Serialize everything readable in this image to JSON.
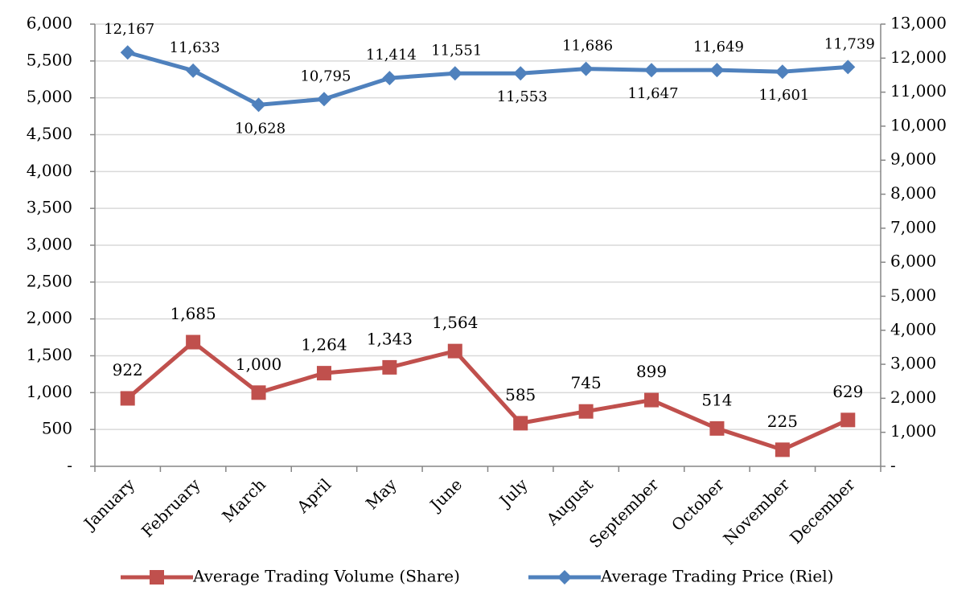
{
  "chart_data": {
    "type": "line",
    "categories": [
      "January",
      "February",
      "March",
      "April",
      "May",
      "June",
      "July",
      "August",
      "September",
      "October",
      "November",
      "December"
    ],
    "series": [
      {
        "name": "Average Trading Volume (Share)",
        "color": "#c0504d",
        "marker": "square",
        "values": [
          922,
          1685,
          1000,
          1264,
          1343,
          1564,
          585,
          745,
          899,
          514,
          225,
          629
        ],
        "value_labels": [
          "922",
          "1,685",
          "1,000",
          "1,264",
          "1,343",
          "1,564",
          "585",
          "745",
          "899",
          "514",
          "225",
          "629"
        ]
      },
      {
        "name": "Average Trading Price (Riel)",
        "color": "#4f81bd",
        "marker": "diamond",
        "axis": "y2",
        "values": [
          12167,
          11633,
          10628,
          10795,
          11414,
          11551,
          11553,
          11686,
          11647,
          11649,
          11601,
          11739
        ],
        "value_labels": [
          "12,167",
          "11,633",
          "10,628",
          "10,795",
          "11,414",
          "11,551",
          "11,553",
          "11,686",
          "11,647",
          "11,649",
          "11,601",
          "11,739"
        ]
      }
    ],
    "ylim": [
      0,
      6000
    ],
    "yticks": [
      {
        "value": 0,
        "label": "-"
      },
      500,
      {
        "value": 1000,
        "label": "1,000"
      },
      {
        "value": 1500,
        "label": "1,500"
      },
      {
        "value": 2000,
        "label": "2,000"
      },
      {
        "value": 2500,
        "label": "2,500"
      },
      {
        "value": 3000,
        "label": "3,000"
      },
      {
        "value": 3500,
        "label": "3,500"
      },
      {
        "value": 4000,
        "label": "4,000"
      },
      {
        "value": 4500,
        "label": "4,500"
      },
      {
        "value": 5000,
        "label": "5,000"
      },
      {
        "value": 5500,
        "label": "5,500"
      },
      {
        "value": 6000,
        "label": "6,000"
      }
    ],
    "y2lim": [
      0,
      13000
    ],
    "y2ticks": [
      {
        "value": 0,
        "label": "-"
      },
      {
        "value": 1000,
        "label": "1,000"
      },
      {
        "value": 2000,
        "label": "2,000"
      },
      {
        "value": 3000,
        "label": "3,000"
      },
      {
        "value": 4000,
        "label": "4,000"
      },
      {
        "value": 5000,
        "label": "5,000"
      },
      {
        "value": 6000,
        "label": "6,000"
      },
      {
        "value": 7000,
        "label": "7,000"
      },
      {
        "value": 8000,
        "label": "8,000"
      },
      {
        "value": 9000,
        "label": "9,000"
      },
      {
        "value": 10000,
        "label": "10,000"
      },
      {
        "value": 11000,
        "label": "11,000"
      },
      {
        "value": 12000,
        "label": "12,000"
      },
      {
        "value": 13000,
        "label": "13,000"
      }
    ],
    "grid": true,
    "legend": "bottom"
  }
}
